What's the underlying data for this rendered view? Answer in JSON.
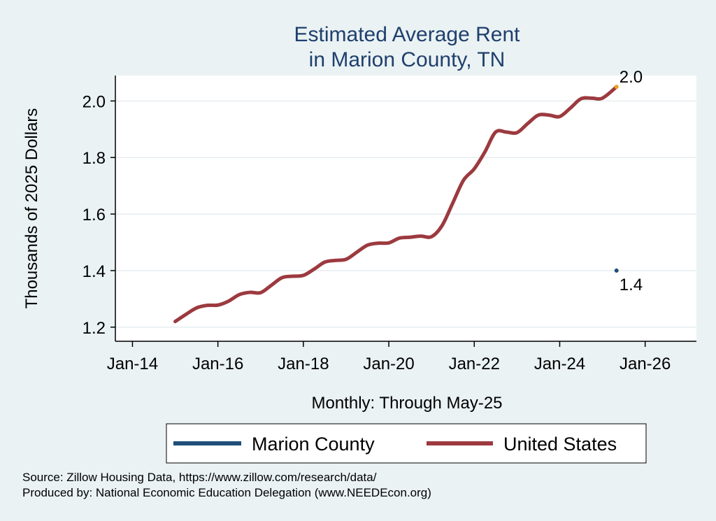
{
  "chart_data": {
    "type": "line",
    "title": [
      "Estimated Average Rent",
      "in Marion County, TN"
    ],
    "ylabel": "Thousands of 2025 Dollars",
    "xlabel": "Monthly: Through May-25",
    "ylim": [
      1.15,
      2.09
    ],
    "xlim": [
      2013.6,
      2027.2
    ],
    "yticks": [
      1.2,
      1.4,
      1.6,
      1.8,
      2.0
    ],
    "ytick_labels": [
      "1.2",
      "1.4",
      "1.6",
      "1.8",
      "2.0"
    ],
    "xticks": [
      2014,
      2016,
      2018,
      2020,
      2022,
      2024,
      2026
    ],
    "xtick_labels": [
      "Jan-14",
      "Jan-16",
      "Jan-18",
      "Jan-20",
      "Jan-22",
      "Jan-24",
      "Jan-26"
    ],
    "grid": "horizontal",
    "legend_position": "bottom",
    "series": [
      {
        "name": "Marion County",
        "color": "#1f4e79",
        "points": [
          [
            2025.33,
            1.4
          ]
        ],
        "end_label": "1.4"
      },
      {
        "name": "United States",
        "color": "#9c3a3f",
        "end_marker_color": "#e8a020",
        "end_label": "2.0",
        "points": [
          [
            2015.0,
            1.22
          ],
          [
            2015.25,
            1.245
          ],
          [
            2015.5,
            1.268
          ],
          [
            2015.75,
            1.277
          ],
          [
            2016.0,
            1.278
          ],
          [
            2016.25,
            1.292
          ],
          [
            2016.5,
            1.315
          ],
          [
            2016.75,
            1.323
          ],
          [
            2017.0,
            1.322
          ],
          [
            2017.25,
            1.348
          ],
          [
            2017.5,
            1.375
          ],
          [
            2017.75,
            1.38
          ],
          [
            2018.0,
            1.383
          ],
          [
            2018.25,
            1.405
          ],
          [
            2018.5,
            1.43
          ],
          [
            2018.75,
            1.436
          ],
          [
            2019.0,
            1.44
          ],
          [
            2019.25,
            1.465
          ],
          [
            2019.5,
            1.49
          ],
          [
            2019.75,
            1.497
          ],
          [
            2020.0,
            1.498
          ],
          [
            2020.25,
            1.515
          ],
          [
            2020.5,
            1.518
          ],
          [
            2020.75,
            1.522
          ],
          [
            2021.0,
            1.52
          ],
          [
            2021.25,
            1.56
          ],
          [
            2021.5,
            1.64
          ],
          [
            2021.75,
            1.72
          ],
          [
            2022.0,
            1.76
          ],
          [
            2022.25,
            1.82
          ],
          [
            2022.5,
            1.89
          ],
          [
            2022.75,
            1.89
          ],
          [
            2023.0,
            1.888
          ],
          [
            2023.25,
            1.92
          ],
          [
            2023.5,
            1.95
          ],
          [
            2023.75,
            1.95
          ],
          [
            2024.0,
            1.945
          ],
          [
            2024.25,
            1.975
          ],
          [
            2024.5,
            2.008
          ],
          [
            2024.75,
            2.01
          ],
          [
            2025.0,
            2.01
          ],
          [
            2025.33,
            2.05
          ]
        ]
      }
    ]
  },
  "source": {
    "line1": "Source: Zillow Housing Data, https://www.zillow.com/research/data/",
    "line2": "Produced by: National Economic Education Delegation (www.NEEDEcon.org)"
  }
}
